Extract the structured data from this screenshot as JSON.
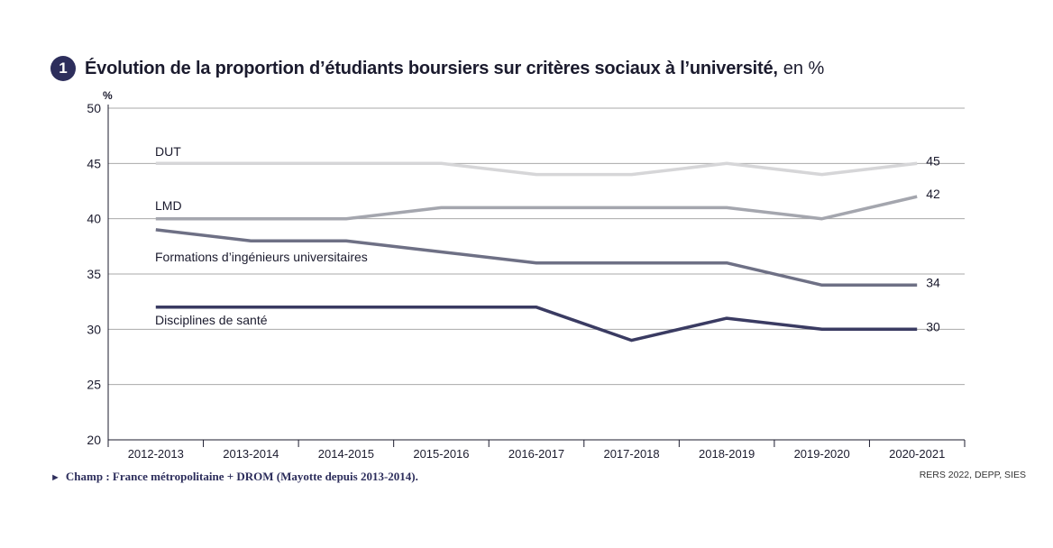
{
  "header": {
    "badge": "1",
    "title": "Évolution de la proportion d’étudiants boursiers sur critères sociaux à l’université,",
    "unit": "en %"
  },
  "chart_data": {
    "type": "line",
    "title": "Évolution de la proportion d’étudiants boursiers sur critères sociaux à l’université, en %",
    "ylabel": "%",
    "xlabel": "",
    "ylim": [
      20,
      50
    ],
    "yticks": [
      20,
      25,
      30,
      35,
      40,
      45,
      50
    ],
    "grid": true,
    "categories": [
      "2012-2013",
      "2013-2014",
      "2014-2015",
      "2015-2016",
      "2016-2017",
      "2017-2018",
      "2018-2019",
      "2019-2020",
      "2020-2021"
    ],
    "series": [
      {
        "name": "DUT",
        "color": "#d6d6d8",
        "values": [
          45,
          45,
          45,
          45,
          44,
          44,
          45,
          44,
          45
        ],
        "end_label": "45"
      },
      {
        "name": "LMD",
        "color": "#a4a6ae",
        "values": [
          40,
          40,
          40,
          41,
          41,
          41,
          41,
          40,
          42
        ],
        "end_label": "42"
      },
      {
        "name": "Formations d’ingénieurs universitaires",
        "color": "#6e7085",
        "values": [
          39,
          38,
          38,
          37,
          36,
          36,
          36,
          34,
          34
        ],
        "end_label": "34"
      },
      {
        "name": "Disciplines de santé",
        "color": "#3a3b62",
        "values": [
          32,
          32,
          32,
          32,
          32,
          29,
          31,
          30,
          30
        ],
        "end_label": "30"
      }
    ]
  },
  "footer": {
    "note": "Champ : France métropolitaine + DROM (Mayotte depuis 2013-2014).",
    "source": "RERS 2022, DEPP, SIES"
  }
}
